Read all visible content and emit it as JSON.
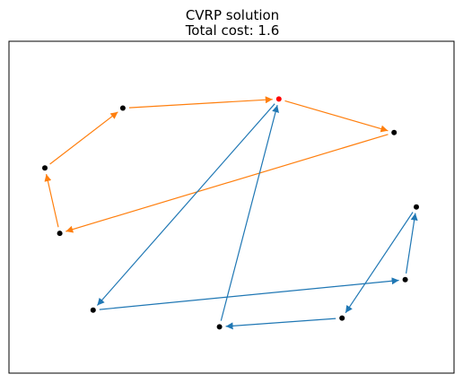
{
  "chart_data": {
    "type": "scatter",
    "title": "CVRP solution",
    "subtitle": "Total cost: 1.6",
    "xlabel": "",
    "ylabel": "",
    "axes_ticks": "none",
    "grid": false,
    "depot": {
      "x": 0.63,
      "y": 0.894,
      "color": "#ff0000"
    },
    "customers": [
      {
        "id": 1,
        "x": 0.21,
        "y": 0.861
      },
      {
        "id": 2,
        "x": 0.94,
        "y": 0.772
      },
      {
        "id": 3,
        "x": 0.0,
        "y": 0.643
      },
      {
        "id": 4,
        "x": 1.0,
        "y": 0.501
      },
      {
        "id": 5,
        "x": 0.04,
        "y": 0.405
      },
      {
        "id": 6,
        "x": 0.97,
        "y": 0.236
      },
      {
        "id": 7,
        "x": 0.13,
        "y": 0.125
      },
      {
        "id": 8,
        "x": 0.8,
        "y": 0.096
      },
      {
        "id": 9,
        "x": 0.47,
        "y": 0.064
      }
    ],
    "routes": [
      {
        "color": "#ff7f0e",
        "stops": [
          "depot",
          2,
          5,
          3,
          1,
          "depot"
        ]
      },
      {
        "color": "#1f77b4",
        "stops": [
          "depot",
          7,
          6,
          4,
          8,
          9,
          "depot"
        ]
      }
    ],
    "node_color": "#000000",
    "colors": {
      "frame": "#000000",
      "background": "#ffffff"
    }
  }
}
